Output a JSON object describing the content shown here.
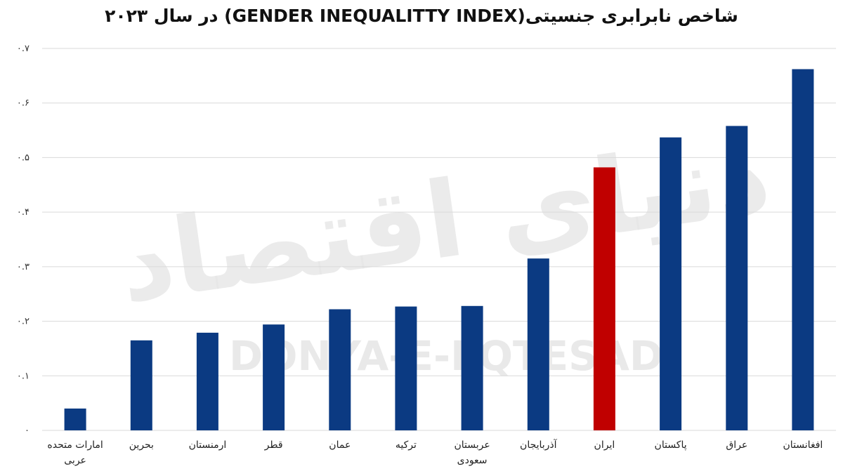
{
  "watermark": {
    "latin": "DONYA-E-EQTESAD",
    "persian": "دنیای اقتصاد"
  },
  "colors": {
    "default_bar": "#0b3a82",
    "highlight_bar": "#c00000",
    "grid": "#d9d9d9"
  },
  "chart_data": {
    "type": "bar",
    "title": "شاخص نابرابری جنسیتی(GENDER INEQUALITTY INDEX) در سال ۲۰۲۳",
    "xlabel": "",
    "ylabel": "",
    "ylim": [
      0,
      0.7
    ],
    "yticks": [
      0,
      0.1,
      0.2,
      0.3,
      0.4,
      0.5,
      0.6,
      0.7
    ],
    "ytick_labels": [
      "۰",
      "۰.۱",
      "۰.۲",
      "۰.۳",
      "۰.۴",
      "۰.۵",
      "۰.۶",
      "۰.۷"
    ],
    "grid": true,
    "legend": "none",
    "categories": [
      "امارات متحده عربی",
      "بحرین",
      "ارمنستان",
      "قطر",
      "عمان",
      "ترکیه",
      "عربستان سعودی",
      "آذربایجان",
      "ایران",
      "پاکستان",
      "عراق",
      "افغانستان"
    ],
    "category_lines": [
      [
        "امارات متحده",
        "عربی"
      ],
      [
        "بحرین"
      ],
      [
        "ارمنستان"
      ],
      [
        "قطر"
      ],
      [
        "عمان"
      ],
      [
        "ترکیه"
      ],
      [
        "عربستان",
        "سعودی"
      ],
      [
        "آذربایجان"
      ],
      [
        "ایران"
      ],
      [
        "پاکستان"
      ],
      [
        "عراق"
      ],
      [
        "افغانستان"
      ]
    ],
    "values": [
      0.04,
      0.165,
      0.179,
      0.194,
      0.222,
      0.227,
      0.228,
      0.315,
      0.482,
      0.537,
      0.558,
      0.662
    ],
    "highlight_index": 8
  }
}
